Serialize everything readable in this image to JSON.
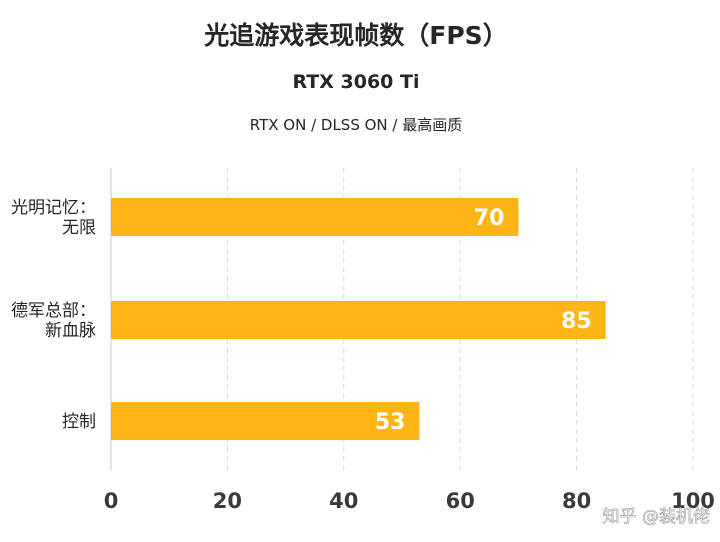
{
  "chart_data": {
    "type": "bar",
    "orientation": "horizontal",
    "title": "光追游戏表现帧数（FPS）",
    "subtitle": "RTX 3060 Ti",
    "caption": "RTX ON / DLSS ON / 最高画质",
    "categories": [
      [
        "光明记忆：",
        "无限"
      ],
      [
        "德军总部：",
        "新血脉"
      ],
      [
        "控制"
      ]
    ],
    "values": [
      70,
      85,
      53
    ],
    "xlim": [
      0,
      100
    ],
    "xticks": [
      "0",
      "20",
      "40",
      "60",
      "80",
      "100"
    ],
    "xlabel": "",
    "ylabel": "",
    "grid": "vertical-dashed",
    "bar_color": "#FDB515",
    "data_label_color": "#ffffff"
  },
  "watermark": "知乎 @装机佬"
}
